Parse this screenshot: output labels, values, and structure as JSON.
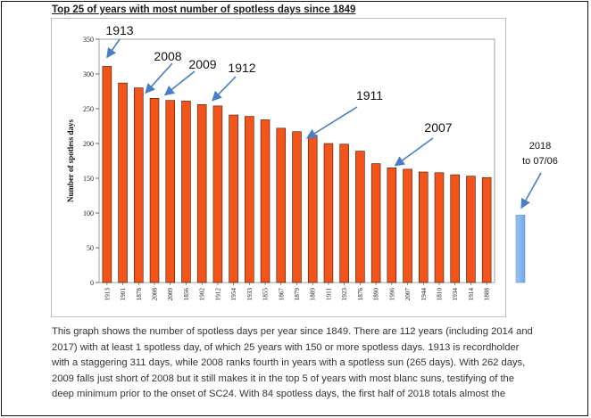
{
  "header": {
    "title": "Top 25 of years with most number of spotless days since 1849"
  },
  "chart_data": {
    "type": "bar",
    "title": "",
    "xlabel": "",
    "ylabel": "Number of spotless days",
    "ylim": [
      0,
      350
    ],
    "yticks": [
      0,
      50,
      100,
      150,
      200,
      250,
      300,
      350
    ],
    "grid": false,
    "bar_color": "#f2541b",
    "bar_edge_color": "#3a1a0a",
    "categories": [
      "1913",
      "1901",
      "1878",
      "2008",
      "2009",
      "1856",
      "1902",
      "1912",
      "1954",
      "1933",
      "1855",
      "1867",
      "1879",
      "1889",
      "1911",
      "1923",
      "1876",
      "1890",
      "1996",
      "2007",
      "1944",
      "1810",
      "1934",
      "1914",
      "1888"
    ],
    "values": [
      311,
      287,
      280,
      265,
      262,
      261,
      256,
      254,
      241,
      239,
      234,
      222,
      217,
      212,
      200,
      199,
      189,
      171,
      165,
      163,
      159,
      158,
      155,
      153,
      151
    ],
    "annotations": [
      {
        "label": "1913",
        "target": "1913"
      },
      {
        "label": "2008",
        "target": "2008"
      },
      {
        "label": "2009",
        "target": "2009"
      },
      {
        "label": "1912",
        "target": "1912"
      },
      {
        "label": "1911",
        "target": "1911"
      },
      {
        "label": "2007",
        "target": "2007"
      }
    ],
    "extra_bar": {
      "label_line1": "2018",
      "label_line2": "to 07/06",
      "value": 97,
      "color": "#6fa8e6"
    }
  },
  "caption": {
    "lines": [
      "This graph shows the number of spotless days per year since 1849. There are 112 years (including 2014 and",
      "2017) with at least 1 spotless day, of which 25 years with 150 or more spotless days. 1913 is recordholder",
      "with a staggering 311 days, while 2008 ranks fourth in years with a spotless sun (265 days). With 262 days,",
      "2009 falls just short of 2008 but it still makes it in the top 5 of years with most blanc suns, testifying of the",
      "deep minimum prior to the onset of SC24. With 84 spotless days, the first half of 2018 totals almost the"
    ]
  }
}
